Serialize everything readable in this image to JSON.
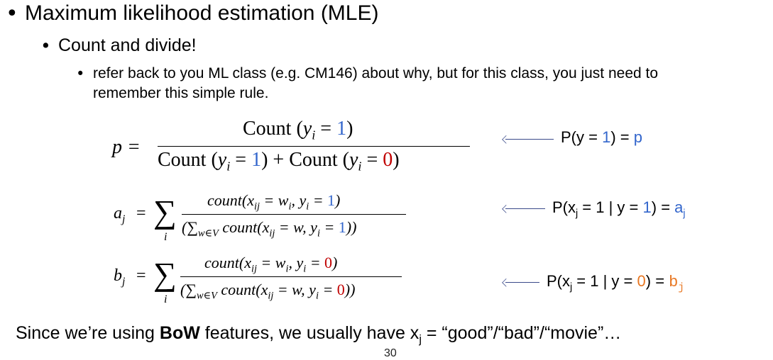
{
  "bullets": {
    "level1": "Maximum likelihood estimation (MLE)",
    "level2": "Count and divide!",
    "level3_line1": "refer back to you ML class (e.g. CM146) about why, but for this class, you just need to",
    "level3_line2": "remember this simple rule."
  },
  "eq_p": {
    "lhs": "p =",
    "num_prefix": "Count (",
    "yi": "y",
    "i_sub": "i",
    "eq": " = ",
    "one": "1",
    "zero": "0",
    "close": ")",
    "plus": " + ",
    "count_word": "Count ("
  },
  "eq_a": {
    "lhs_var": "a",
    "lhs_sub": "j",
    "eq": "=",
    "sigma": "∑",
    "sigma_sub": "i",
    "num_text_a": "count(x",
    "num_sub_ij": "ij",
    "num_text_b": " = w",
    "num_sub_i": "i",
    "num_text_c": ", y",
    "num_sub_i2": "i",
    "num_text_d": " = ",
    "num_val": "1",
    "num_close": ")",
    "den_open": "(∑",
    "den_sub_w": "w∈V",
    "den_text_a": " count(x",
    "den_sub_ij": "ij",
    "den_text_b": " = w, y",
    "den_sub_i": "i",
    "den_text_c": " = ",
    "den_val": "1",
    "den_close": "))"
  },
  "eq_b": {
    "lhs_var": "b",
    "lhs_sub": "j",
    "eq": "=",
    "sigma": "∑",
    "sigma_sub": "i",
    "num_text_a": "count(x",
    "num_sub_ij": "ij",
    "num_text_b": " = w",
    "num_sub_i": "i",
    "num_text_c": ", y",
    "num_sub_i2": "i",
    "num_text_d": " = ",
    "num_val": "0",
    "num_close": ")",
    "den_open": "(∑",
    "den_sub_w": "w∈V",
    "den_text_a": " count(x",
    "den_sub_ij": "ij",
    "den_text_b": " = w, y",
    "den_sub_i": "i",
    "den_text_c": " = ",
    "den_val": "0",
    "den_close": "))"
  },
  "annotations": {
    "p_label_a": "P(y = ",
    "p_label_val": "1",
    "p_label_b": ") = ",
    "p_label_var": "p",
    "a_label_a": "P(x",
    "a_label_sub": "j",
    "a_label_b": " = 1 | y = ",
    "a_label_val": "1",
    "a_label_c": ") = ",
    "a_label_var": "a",
    "a_label_var_sub": "j",
    "b_label_a": "P(x",
    "b_label_sub": "j",
    "b_label_b": " = 1 | y = ",
    "b_label_val": "0",
    "b_label_c": ") = ",
    "b_label_var": "b",
    "b_label_var_sub": "j"
  },
  "footer": {
    "text_a": "Since we’re using ",
    "bold": "BoW",
    "text_b": " features, we usually have x",
    "sub": "j",
    "text_c": " = “good”/“bad”/“movie”…",
    "page_number": "30"
  },
  "colors": {
    "blue": "#3366cc",
    "red": "#c00000",
    "orange": "#e87722"
  }
}
